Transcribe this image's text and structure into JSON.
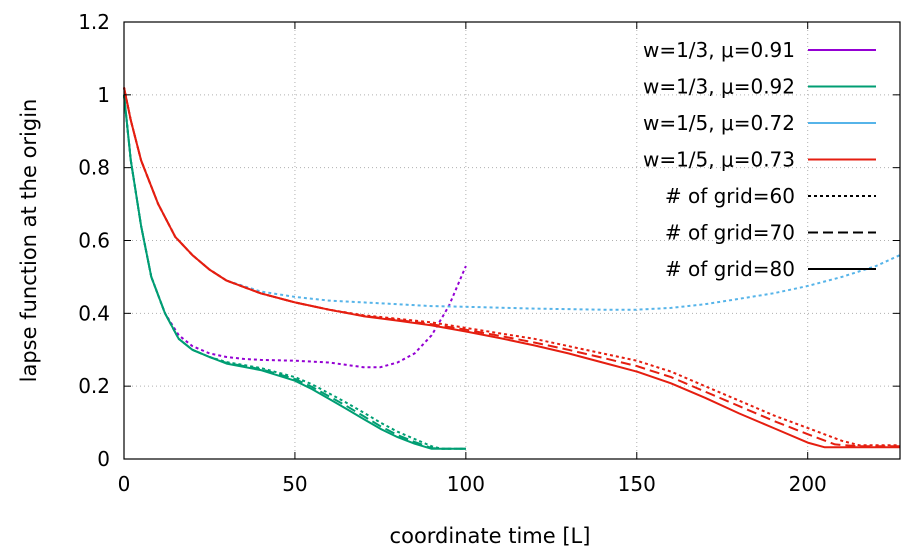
{
  "chart_data": {
    "type": "line",
    "xlabel": "coordinate time [L]",
    "ylabel": "lapse function at the origin",
    "xlim": [
      0,
      227
    ],
    "ylim": [
      0,
      1.2
    ],
    "x_ticks": [
      0,
      50,
      100,
      150,
      200
    ],
    "y_ticks": [
      0,
      0.2,
      0.4,
      0.6,
      0.8,
      1,
      1.2
    ],
    "x_tick_labels": [
      "0",
      "50",
      "100",
      "150",
      "200"
    ],
    "y_tick_labels": [
      "0",
      "0.2",
      "0.4",
      "0.6",
      "0.8",
      "1",
      "1.2"
    ],
    "grid": true,
    "legend_position": "top-right",
    "legend_entries": [
      "w=1/3, μ=0.91",
      "w=1/3, μ=0.92",
      "w=1/5, μ=0.72",
      "w=1/5, μ=0.73",
      "# of grid=60",
      "# of grid=70",
      "# of grid=80"
    ],
    "colors": {
      "w13_mu091": "#9400d3",
      "w13_mu092": "#009e73",
      "w15_mu072": "#56b4e9",
      "w15_mu073": "#e51e10",
      "grid_legend": "#000000"
    },
    "series": [
      {
        "name": "w=1/3, μ=0.91",
        "color_key": "w13_mu091",
        "dash": "dotted",
        "x": [
          0,
          2,
          5,
          8,
          12,
          16,
          20,
          25,
          30,
          35,
          40,
          50,
          60,
          70,
          75,
          80,
          85,
          90,
          95,
          100
        ],
        "y": [
          1.0,
          0.82,
          0.64,
          0.5,
          0.4,
          0.34,
          0.31,
          0.29,
          0.28,
          0.275,
          0.272,
          0.27,
          0.265,
          0.252,
          0.252,
          0.265,
          0.29,
          0.34,
          0.42,
          0.53
        ]
      },
      {
        "name": "w=1/3, μ=0.92",
        "color_key": "w13_mu092",
        "dash": "dotted",
        "x": [
          0,
          2,
          5,
          8,
          12,
          16,
          20,
          25,
          30,
          40,
          50,
          55,
          60,
          65,
          70,
          75,
          80,
          85,
          90,
          93,
          100
        ],
        "y": [
          1.0,
          0.82,
          0.64,
          0.5,
          0.4,
          0.33,
          0.3,
          0.28,
          0.266,
          0.25,
          0.225,
          0.205,
          0.18,
          0.155,
          0.128,
          0.1,
          0.075,
          0.055,
          0.035,
          0.028,
          0.028
        ]
      },
      {
        "name": "w=1/3, μ=0.92",
        "color_key": "w13_mu092",
        "dash": "dashed",
        "x": [
          0,
          2,
          5,
          8,
          12,
          16,
          20,
          25,
          30,
          40,
          50,
          55,
          60,
          65,
          70,
          75,
          80,
          85,
          90,
          93,
          100
        ],
        "y": [
          1.0,
          0.82,
          0.64,
          0.5,
          0.4,
          0.33,
          0.3,
          0.28,
          0.264,
          0.247,
          0.22,
          0.198,
          0.172,
          0.146,
          0.118,
          0.09,
          0.066,
          0.047,
          0.03,
          0.028,
          0.028
        ]
      },
      {
        "name": "w=1/3, μ=0.92",
        "color_key": "w13_mu092",
        "dash": "solid",
        "x": [
          0,
          2,
          5,
          8,
          12,
          16,
          20,
          25,
          30,
          40,
          50,
          55,
          60,
          65,
          70,
          75,
          80,
          85,
          90,
          93,
          100
        ],
        "y": [
          1.0,
          0.82,
          0.64,
          0.5,
          0.4,
          0.33,
          0.3,
          0.28,
          0.262,
          0.244,
          0.215,
          0.192,
          0.165,
          0.138,
          0.11,
          0.083,
          0.06,
          0.042,
          0.028,
          0.028,
          0.028
        ]
      },
      {
        "name": "w=1/5, μ=0.72",
        "color_key": "w15_mu072",
        "dash": "dotted",
        "x": [
          0,
          2,
          5,
          10,
          15,
          20,
          25,
          30,
          40,
          50,
          60,
          70,
          80,
          90,
          100,
          120,
          140,
          150,
          160,
          170,
          180,
          190,
          200,
          210,
          220,
          227
        ],
        "y": [
          1.02,
          0.93,
          0.82,
          0.7,
          0.61,
          0.56,
          0.52,
          0.49,
          0.46,
          0.445,
          0.435,
          0.43,
          0.425,
          0.42,
          0.418,
          0.413,
          0.41,
          0.41,
          0.415,
          0.425,
          0.44,
          0.455,
          0.475,
          0.5,
          0.53,
          0.56
        ]
      },
      {
        "name": "w=1/5, μ=0.73",
        "color_key": "w15_mu073",
        "dash": "dotted",
        "x": [
          0,
          2,
          5,
          10,
          15,
          20,
          25,
          30,
          40,
          50,
          60,
          70,
          80,
          90,
          100,
          110,
          120,
          130,
          140,
          150,
          160,
          170,
          180,
          190,
          200,
          210,
          215,
          220,
          227
        ],
        "y": [
          1.02,
          0.93,
          0.82,
          0.7,
          0.61,
          0.56,
          0.52,
          0.49,
          0.455,
          0.43,
          0.41,
          0.395,
          0.385,
          0.375,
          0.36,
          0.345,
          0.33,
          0.31,
          0.29,
          0.27,
          0.24,
          0.2,
          0.16,
          0.12,
          0.085,
          0.05,
          0.038,
          0.038,
          0.038
        ]
      },
      {
        "name": "w=1/5, μ=0.73",
        "color_key": "w15_mu073",
        "dash": "dashed",
        "x": [
          0,
          2,
          5,
          10,
          15,
          20,
          25,
          30,
          40,
          50,
          60,
          70,
          80,
          90,
          100,
          110,
          120,
          130,
          140,
          150,
          160,
          170,
          180,
          190,
          200,
          208,
          215,
          227
        ],
        "y": [
          1.02,
          0.93,
          0.82,
          0.7,
          0.61,
          0.56,
          0.52,
          0.49,
          0.455,
          0.43,
          0.41,
          0.393,
          0.382,
          0.37,
          0.355,
          0.338,
          0.32,
          0.3,
          0.278,
          0.255,
          0.225,
          0.185,
          0.145,
          0.105,
          0.068,
          0.04,
          0.035,
          0.035
        ]
      },
      {
        "name": "w=1/5, μ=0.73",
        "color_key": "w15_mu073",
        "dash": "solid",
        "x": [
          0,
          2,
          5,
          10,
          15,
          20,
          25,
          30,
          40,
          50,
          60,
          70,
          80,
          90,
          100,
          110,
          120,
          130,
          140,
          150,
          160,
          170,
          180,
          190,
          200,
          205,
          227
        ],
        "y": [
          1.02,
          0.93,
          0.82,
          0.7,
          0.61,
          0.56,
          0.52,
          0.49,
          0.455,
          0.43,
          0.41,
          0.392,
          0.38,
          0.367,
          0.35,
          0.332,
          0.312,
          0.29,
          0.265,
          0.24,
          0.208,
          0.168,
          0.125,
          0.085,
          0.045,
          0.032,
          0.032
        ]
      }
    ]
  }
}
